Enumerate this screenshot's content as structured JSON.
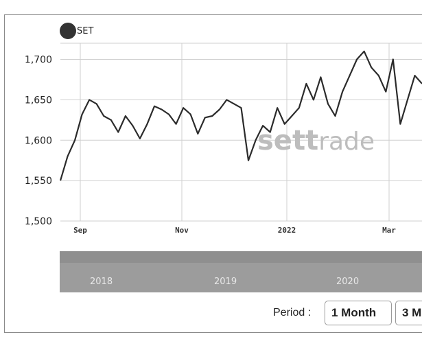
{
  "legend": {
    "series_name": "SET"
  },
  "watermark": {
    "bold": "sett",
    "regular": "rade"
  },
  "navigator": {
    "labels": [
      "2018",
      "2019",
      "2020"
    ]
  },
  "period": {
    "label": "Period :",
    "buttons": [
      "1 Month",
      "3 M"
    ]
  },
  "colors": {
    "line": "#2b2b2b",
    "grid": "#cfcfcf",
    "legend_dot": "#333333",
    "navigator": "#9c9c9c"
  },
  "chart_data": {
    "type": "line",
    "title": "",
    "xlabel": "",
    "ylabel": "",
    "ylim": [
      1500,
      1720
    ],
    "y_ticks": [
      "1,500",
      "1,550",
      "1,600",
      "1,650",
      "1,700"
    ],
    "x_ticks": [
      "Sep",
      "Nov",
      "2022",
      "Mar"
    ],
    "grid": true,
    "series": [
      {
        "name": "SET",
        "values": [
          1550,
          1580,
          1600,
          1632,
          1650,
          1645,
          1630,
          1625,
          1610,
          1630,
          1618,
          1602,
          1620,
          1642,
          1638,
          1632,
          1620,
          1640,
          1632,
          1608,
          1628,
          1630,
          1638,
          1650,
          1645,
          1640,
          1575,
          1600,
          1618,
          1610,
          1640,
          1620,
          1630,
          1640,
          1670,
          1650,
          1678,
          1645,
          1630,
          1660,
          1680,
          1700,
          1710,
          1690,
          1680,
          1660,
          1700,
          1620,
          1650,
          1680,
          1670
        ]
      }
    ]
  }
}
